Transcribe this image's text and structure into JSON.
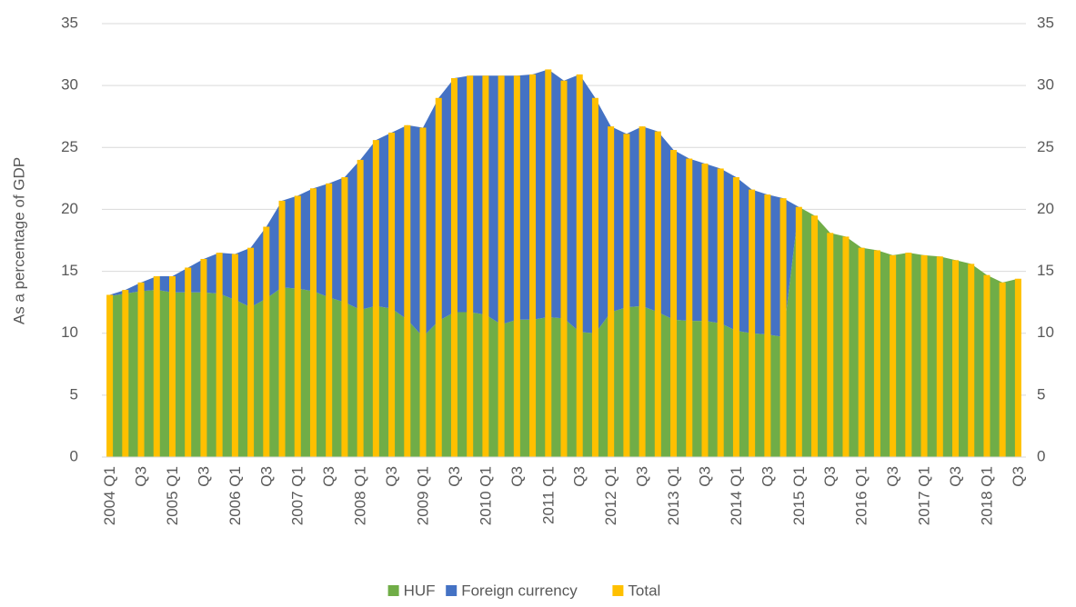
{
  "chart_data": {
    "type": "stacked-area-bar",
    "y_label": "As a percentage of GDP",
    "categories": [
      "2004 Q1",
      null,
      "Q3",
      null,
      "2005 Q1",
      null,
      "Q3",
      null,
      "2006 Q1",
      null,
      "Q3",
      null,
      "2007 Q1",
      null,
      "Q3",
      null,
      "2008 Q1",
      null,
      "Q3",
      null,
      "2009 Q1",
      null,
      "Q3",
      null,
      "2010 Q1",
      null,
      "Q3",
      null,
      "2011 Q1",
      null,
      "Q3",
      null,
      "2012 Q1",
      null,
      "Q3",
      null,
      "2013 Q1",
      null,
      "Q3",
      null,
      "2014 Q1",
      null,
      "Q3",
      null,
      "2015 Q1",
      null,
      "Q3",
      null,
      "2016 Q1",
      null,
      "Q3",
      null,
      "2017 Q1",
      null,
      "Q3",
      null,
      "2018 Q1",
      null,
      "Q3"
    ],
    "series": [
      {
        "name": "HUF",
        "kind": "area",
        "color": "#70ad47",
        "values": [
          13.0,
          13.2,
          13.4,
          13.5,
          13.3,
          13.3,
          13.3,
          13.2,
          12.7,
          12.1,
          12.8,
          13.7,
          13.6,
          13.4,
          12.9,
          12.5,
          11.9,
          12.2,
          12.0,
          11.1,
          9.7,
          11.0,
          11.7,
          11.7,
          11.5,
          10.7,
          11.1,
          11.1,
          11.3,
          11.2,
          10.1,
          10.0,
          11.7,
          12.1,
          12.2,
          11.7,
          11.1,
          11.0,
          11.0,
          10.8,
          10.2,
          10.0,
          9.9,
          9.7,
          20.2,
          19.5,
          18.1,
          17.8,
          16.9,
          16.7,
          16.3,
          16.5,
          16.3,
          16.2,
          15.9,
          15.6,
          14.7,
          14.1,
          14.4
        ]
      },
      {
        "name": "Foreign currency",
        "kind": "area",
        "color": "#4472c4",
        "values": [
          0.1,
          0.3,
          0.7,
          1.1,
          1.3,
          2.0,
          2.7,
          3.3,
          3.7,
          4.8,
          5.8,
          7.0,
          7.5,
          8.3,
          9.2,
          10.1,
          12.1,
          13.4,
          14.2,
          15.7,
          16.9,
          18.0,
          18.9,
          19.1,
          19.3,
          20.1,
          19.7,
          19.8,
          20.0,
          19.2,
          20.8,
          19.0,
          15.0,
          14.0,
          14.5,
          14.6,
          13.7,
          13.1,
          12.7,
          12.5,
          12.4,
          11.6,
          11.3,
          11.2,
          0,
          0,
          0,
          0,
          0,
          0,
          0,
          0,
          0,
          0,
          0,
          0,
          0,
          0,
          0
        ]
      },
      {
        "name": "Total",
        "kind": "bar",
        "color": "#ffc000",
        "values": [
          13.1,
          13.5,
          14.1,
          14.6,
          14.6,
          15.3,
          16.0,
          16.5,
          16.4,
          16.9,
          18.6,
          20.7,
          21.1,
          21.7,
          22.1,
          22.6,
          24.0,
          25.6,
          26.2,
          26.8,
          26.6,
          29.0,
          30.6,
          30.8,
          30.8,
          30.8,
          30.8,
          30.9,
          31.3,
          30.4,
          30.9,
          29.0,
          26.7,
          26.1,
          26.7,
          26.3,
          24.8,
          24.1,
          23.7,
          23.3,
          22.6,
          21.6,
          21.2,
          20.9,
          20.2,
          19.5,
          18.1,
          17.8,
          16.9,
          16.7,
          16.3,
          16.5,
          16.3,
          16.2,
          15.9,
          15.6,
          14.7,
          14.1,
          14.4
        ]
      }
    ],
    "ylim": [
      0,
      35
    ],
    "yticks": [
      0,
      5,
      10,
      15,
      20,
      25,
      30,
      35
    ],
    "y2lim": [
      0,
      35
    ],
    "y2ticks": [
      0,
      5,
      10,
      15,
      20,
      25,
      30,
      35
    ],
    "grid": true,
    "legend": "bottom"
  }
}
